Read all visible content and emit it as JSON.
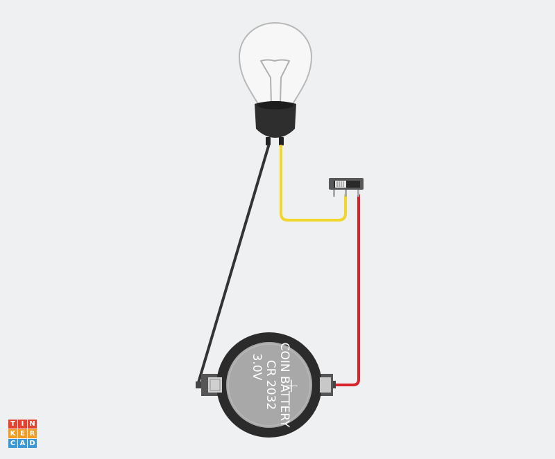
{
  "circuit": {
    "battery": {
      "line1": "COIN BATTERY",
      "line2": "CR 2032",
      "line3": "3.0V",
      "polarity": "+"
    },
    "wires": {
      "negative": "#333333",
      "switch_link": "#f1d62c",
      "positive": "#d9232c"
    }
  },
  "brand": {
    "letters": [
      "T",
      "I",
      "N",
      "K",
      "E",
      "R",
      "C",
      "A",
      "D"
    ],
    "colors": [
      "#e5412f",
      "#e5412f",
      "#e5412f",
      "#f39c1e",
      "#f39c1e",
      "#f39c1e",
      "#3b9ad6",
      "#3b9ad6",
      "#3b9ad6"
    ]
  }
}
